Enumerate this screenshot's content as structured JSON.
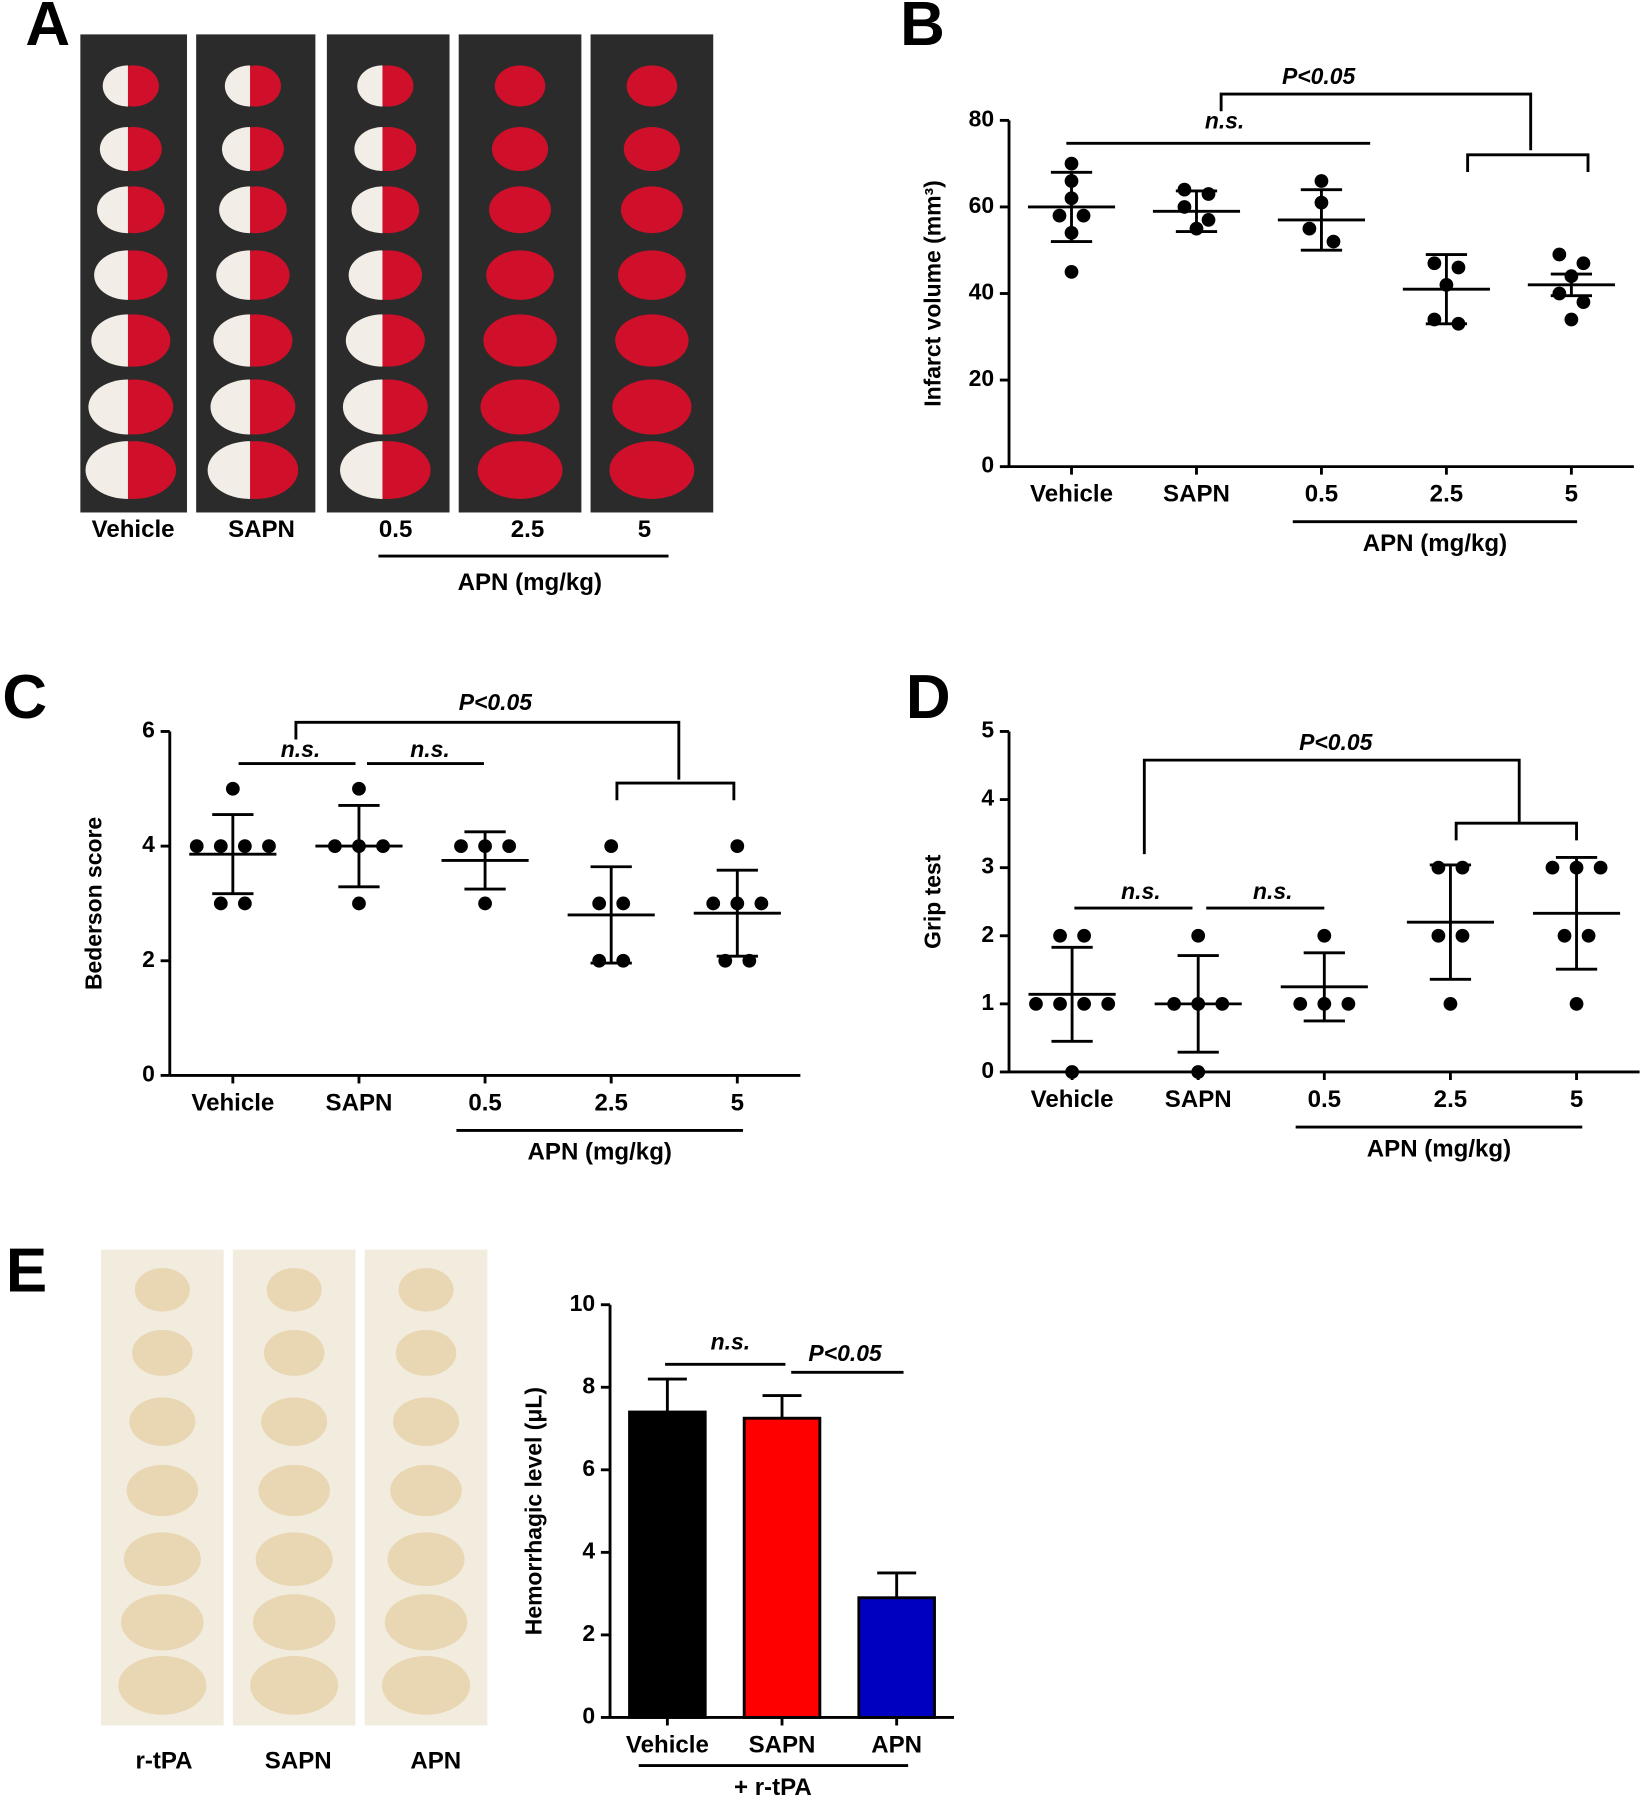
{
  "chart_data": [
    {
      "type": "image-panel",
      "panel": "A",
      "categories": [
        "Vehicle",
        "SAPN",
        "0.5",
        "2.5",
        "5"
      ],
      "group_label": "APN (mg/kg)"
    },
    {
      "type": "dot",
      "panel": "B",
      "y_label": "Infarct volume (mm³)",
      "ylim": [
        0,
        80
      ],
      "yticks": [
        0,
        20,
        40,
        60,
        80
      ],
      "group_label": "APN (mg/kg)",
      "annotations": [
        "n.s.",
        "P<0.05"
      ],
      "groups": [
        {
          "name": "Vehicle",
          "values": [
            70,
            66,
            62,
            58,
            58,
            54,
            45
          ],
          "mean": 60,
          "error": 8
        },
        {
          "name": "SAPN",
          "values": [
            64,
            63,
            60,
            57,
            55
          ],
          "mean": 59,
          "error": 4.7
        },
        {
          "name": "0.5",
          "values": [
            66,
            61,
            55,
            52
          ],
          "mean": 57,
          "error": 7
        },
        {
          "name": "2.5",
          "values": [
            47,
            46,
            42,
            34,
            33
          ],
          "mean": 41,
          "error": 8
        },
        {
          "name": "5",
          "values": [
            49,
            47,
            44,
            40,
            38,
            34
          ],
          "mean": 42,
          "error": 2.5
        }
      ]
    },
    {
      "type": "dot",
      "panel": "C",
      "y_label": "Bederson score",
      "ylim": [
        0,
        6
      ],
      "yticks": [
        0,
        2,
        4,
        6
      ],
      "group_label": "APN (mg/kg)",
      "annotations": [
        "n.s.",
        "n.s.",
        "P<0.05"
      ],
      "groups": [
        {
          "name": "Vehicle",
          "values": [
            5,
            4,
            4,
            4,
            4,
            3,
            3
          ],
          "mean": 3.86,
          "error": 0.69
        },
        {
          "name": "SAPN",
          "values": [
            5,
            4,
            4,
            4,
            3
          ],
          "mean": 4,
          "error": 0.71
        },
        {
          "name": "0.5",
          "values": [
            4,
            4,
            4,
            3
          ],
          "mean": 3.75,
          "error": 0.5
        },
        {
          "name": "2.5",
          "values": [
            4,
            3,
            3,
            2,
            2
          ],
          "mean": 2.8,
          "error": 0.84
        },
        {
          "name": "5",
          "values": [
            4,
            3,
            3,
            3,
            2,
            2
          ],
          "mean": 2.83,
          "error": 0.75
        }
      ]
    },
    {
      "type": "dot",
      "panel": "D",
      "y_label": "Grip test",
      "ylim": [
        0,
        5
      ],
      "yticks": [
        0,
        1,
        2,
        3,
        4,
        5
      ],
      "group_label": "APN (mg/kg)",
      "annotations": [
        "n.s.",
        "n.s.",
        "P<0.05"
      ],
      "groups": [
        {
          "name": "Vehicle",
          "values": [
            2,
            2,
            1,
            1,
            1,
            1,
            0
          ],
          "mean": 1.14,
          "error": 0.69
        },
        {
          "name": "SAPN",
          "values": [
            2,
            1,
            1,
            1,
            0
          ],
          "mean": 1,
          "error": 0.71
        },
        {
          "name": "0.5",
          "values": [
            2,
            1,
            1,
            1
          ],
          "mean": 1.25,
          "error": 0.5
        },
        {
          "name": "2.5",
          "values": [
            3,
            3,
            2,
            2,
            1
          ],
          "mean": 2.2,
          "error": 0.84
        },
        {
          "name": "5",
          "values": [
            3,
            3,
            3,
            2,
            2,
            1
          ],
          "mean": 2.33,
          "error": 0.82
        }
      ]
    },
    {
      "type": "bar",
      "panel": "E",
      "photo_labels": [
        "r-tPA",
        "SAPN",
        "APN"
      ],
      "y_label": "Hemorrhagic level (μL)",
      "ylim": [
        0,
        10
      ],
      "yticks": [
        0,
        2,
        4,
        6,
        8,
        10
      ],
      "group_label": "+ r-tPA",
      "annotations": [
        "n.s.",
        "P<0.05"
      ],
      "categories": [
        "Vehicle",
        "SAPN",
        "APN"
      ],
      "values": [
        7.4,
        7.25,
        2.9
      ],
      "errors": [
        0.8,
        0.55,
        0.6
      ],
      "colors": [
        "#000000",
        "#ff0000",
        "#0000c0"
      ]
    }
  ]
}
